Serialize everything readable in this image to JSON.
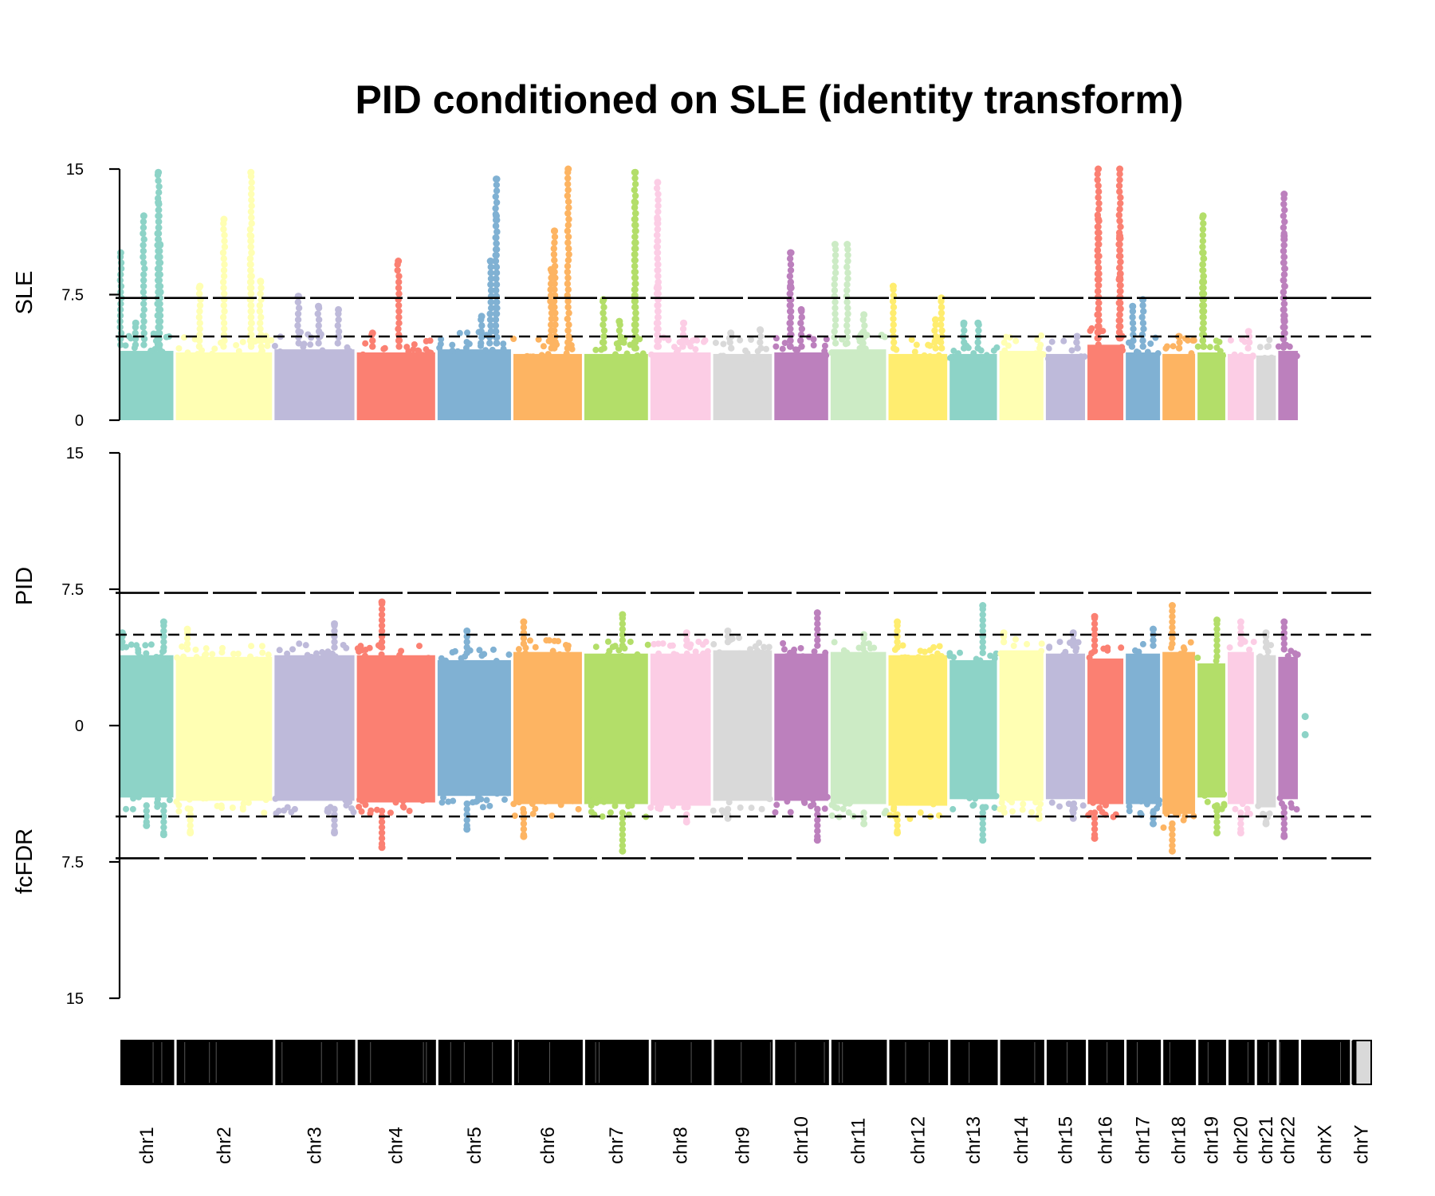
{
  "chart_data": {
    "type": "scatter",
    "title": "PID conditioned on SLE (identity transform)",
    "panels": [
      {
        "name": "top",
        "ylabel": "SLE",
        "yticks": [
          "15",
          "7.5",
          "0"
        ],
        "ylim": [
          0,
          15
        ],
        "threshold_solid": 7.3,
        "threshold_dashed": 5
      },
      {
        "name": "bottom",
        "ylabel_upper": "PID",
        "ylabel_lower": "fcFDR",
        "yticks": [
          "15",
          "7.5",
          "0",
          "7.5",
          "15"
        ],
        "ylim": [
          -15,
          15
        ],
        "threshold_solid": 7.3,
        "threshold_dashed": 5
      }
    ],
    "chromosomes": [
      {
        "name": "chr1",
        "color": "#8DD3C7",
        "top_base": 4.5,
        "top_peaks": [
          [
            0.02,
            10
          ],
          [
            0.45,
            12.2
          ],
          [
            0.72,
            14.8
          ],
          [
            0.72,
            13
          ],
          [
            0.75,
            10.5
          ],
          [
            0.3,
            5.8
          ]
        ],
        "bot_pos": 4.3,
        "bot_neg": 4.4,
        "bot_extremes": [
          [
            0.82,
            5.7
          ],
          [
            0.05,
            5.1
          ],
          [
            0.82,
            -6
          ],
          [
            0.5,
            -5.5
          ]
        ]
      },
      {
        "name": "chr2",
        "color": "#FFFFB3",
        "top_base": 4.4,
        "top_peaks": [
          [
            0.25,
            8
          ],
          [
            0.5,
            12
          ],
          [
            0.78,
            14.8
          ],
          [
            0.78,
            11
          ],
          [
            0.88,
            8.3
          ]
        ],
        "bot_pos": 4.2,
        "bot_neg": 4.6,
        "bot_extremes": [
          [
            0.12,
            5.3
          ],
          [
            0.15,
            -5.9
          ]
        ]
      },
      {
        "name": "chr3",
        "color": "#BEBADA",
        "top_base": 4.6,
        "top_peaks": [
          [
            0.3,
            7.4
          ],
          [
            0.55,
            6.8
          ],
          [
            0.8,
            6.6
          ]
        ],
        "bot_pos": 4.3,
        "bot_neg": 4.6,
        "bot_extremes": [
          [
            0.75,
            5.6
          ],
          [
            0.75,
            -5.9
          ]
        ]
      },
      {
        "name": "chr4",
        "color": "#FB8072",
        "top_base": 4.4,
        "top_peaks": [
          [
            0.53,
            9.5
          ],
          [
            0.2,
            5.2
          ]
        ],
        "bot_pos": 4.3,
        "bot_neg": 4.7,
        "bot_extremes": [
          [
            0.32,
            6.8
          ],
          [
            0.32,
            -6.7
          ]
        ]
      },
      {
        "name": "chr5",
        "color": "#80B1D3",
        "top_base": 4.6,
        "top_peaks": [
          [
            0.8,
            14.4
          ],
          [
            0.8,
            12.2
          ],
          [
            0.72,
            9.5
          ],
          [
            0.6,
            6.2
          ]
        ],
        "bot_pos": 4,
        "bot_neg": 4.3,
        "bot_extremes": [
          [
            0.4,
            5.2
          ],
          [
            0.4,
            -5.7
          ]
        ]
      },
      {
        "name": "chr6",
        "color": "#FDB462",
        "top_base": 4.3,
        "top_peaks": [
          [
            0.8,
            15
          ],
          [
            0.6,
            11.3
          ],
          [
            0.55,
            9
          ],
          [
            0.2,
            3.8
          ]
        ],
        "bot_pos": 4.5,
        "bot_neg": 4.8,
        "bot_extremes": [
          [
            0.15,
            5.7
          ],
          [
            0.15,
            -6.1
          ]
        ]
      },
      {
        "name": "chr7",
        "color": "#B3DE69",
        "top_base": 4.3,
        "top_peaks": [
          [
            0.8,
            14.8
          ],
          [
            0.8,
            13
          ],
          [
            0.3,
            7.2
          ],
          [
            0.55,
            5.9
          ]
        ],
        "bot_pos": 4.4,
        "bot_neg": 4.8,
        "bot_extremes": [
          [
            0.6,
            6.1
          ],
          [
            0.6,
            -6.9
          ]
        ]
      },
      {
        "name": "chr8",
        "color": "#FCCDE5",
        "top_base": 4.4,
        "top_peaks": [
          [
            0.12,
            14.2
          ],
          [
            0.12,
            12
          ],
          [
            0.12,
            8
          ],
          [
            0.55,
            5.8
          ]
        ],
        "bot_pos": 4.4,
        "bot_neg": 4.9,
        "bot_extremes": [
          [
            0.6,
            5.1
          ],
          [
            0.6,
            -5.3
          ]
        ]
      },
      {
        "name": "chr9",
        "color": "#D9D9D9",
        "top_base": 4.3,
        "top_peaks": [
          [
            0.3,
            5.2
          ],
          [
            0.8,
            5.4
          ]
        ],
        "bot_pos": 4.6,
        "bot_neg": 4.6,
        "bot_extremes": [
          [
            0.25,
            5.2
          ],
          [
            0.25,
            -5.1
          ]
        ]
      },
      {
        "name": "chr10",
        "color": "#BC80BD",
        "top_base": 4.4,
        "top_peaks": [
          [
            0.3,
            10
          ],
          [
            0.3,
            8
          ],
          [
            0.5,
            6.6
          ]
        ],
        "bot_pos": 4.4,
        "bot_neg": 4.6,
        "bot_extremes": [
          [
            0.8,
            6.2
          ],
          [
            0.8,
            -6.3
          ]
        ]
      },
      {
        "name": "chr11",
        "color": "#CCEBC5",
        "top_base": 4.6,
        "top_peaks": [
          [
            0.08,
            10.5
          ],
          [
            0.3,
            10.5
          ],
          [
            0.6,
            6.3
          ]
        ],
        "bot_pos": 4.5,
        "bot_neg": 4.8,
        "bot_extremes": [
          [
            0.6,
            5.0
          ],
          [
            0.6,
            -5.4
          ]
        ]
      },
      {
        "name": "chr12",
        "color": "#FFED6F",
        "top_base": 4.3,
        "top_peaks": [
          [
            0.08,
            8
          ],
          [
            0.9,
            7.3
          ],
          [
            0.8,
            6.0
          ]
        ],
        "bot_pos": 4.3,
        "bot_neg": 4.9,
        "bot_extremes": [
          [
            0.15,
            5.7
          ],
          [
            0.15,
            -5.9
          ]
        ]
      },
      {
        "name": "chr13",
        "color": "#8DD3C7",
        "top_base": 4.3,
        "top_peaks": [
          [
            0.6,
            5.8
          ],
          [
            0.3,
            5.8
          ]
        ],
        "bot_pos": 4.0,
        "bot_neg": 4.5,
        "bot_extremes": [
          [
            0.7,
            6.6
          ],
          [
            0.7,
            -6.3
          ]
        ]
      },
      {
        "name": "chr14",
        "color": "#FFFFB3",
        "top_base": 4.5,
        "top_peaks": [],
        "bot_pos": 4.6,
        "bot_neg": 4.6,
        "bot_extremes": [
          [
            0.1,
            5.1
          ],
          [
            0.9,
            -5.1
          ]
        ]
      },
      {
        "name": "chr15",
        "color": "#BEBADA",
        "top_base": 4.3,
        "top_peaks": [
          [
            0.8,
            5.0
          ]
        ],
        "bot_pos": 4.4,
        "bot_neg": 4.5,
        "bot_extremes": [
          [
            0.7,
            5.1
          ],
          [
            0.7,
            -5.1
          ]
        ]
      },
      {
        "name": "chr16",
        "color": "#FB8072",
        "top_base": 4.9,
        "top_peaks": [
          [
            0.3,
            15
          ],
          [
            0.3,
            12
          ],
          [
            0.9,
            15
          ],
          [
            0.9,
            11
          ],
          [
            0.9,
            8.5
          ]
        ],
        "bot_pos": 4.1,
        "bot_neg": 4.8,
        "bot_extremes": [
          [
            0.2,
            6.0
          ],
          [
            0.2,
            -6.2
          ]
        ]
      },
      {
        "name": "chr17",
        "color": "#80B1D3",
        "top_base": 4.4,
        "top_peaks": [
          [
            0.2,
            6.8
          ],
          [
            0.5,
            7.2
          ]
        ],
        "bot_pos": 4.4,
        "bot_neg": 4.8,
        "bot_extremes": [
          [
            0.8,
            5.3
          ],
          [
            0.8,
            -5.4
          ]
        ]
      },
      {
        "name": "chr18",
        "color": "#FDB462",
        "top_base": 4.3,
        "top_peaks": [
          [
            0.5,
            5.0
          ]
        ],
        "bot_pos": 4.5,
        "bot_neg": 5.4,
        "bot_extremes": [
          [
            0.3,
            6.6
          ],
          [
            0.3,
            -6.9
          ]
        ]
      },
      {
        "name": "chr19",
        "color": "#B3DE69",
        "top_base": 4.4,
        "top_peaks": [
          [
            0.2,
            12.2
          ],
          [
            0.2,
            10
          ],
          [
            0.2,
            8.3
          ]
        ],
        "bot_pos": 3.8,
        "bot_neg": 4.4,
        "bot_extremes": [
          [
            0.7,
            5.8
          ],
          [
            0.7,
            -5.9
          ]
        ]
      },
      {
        "name": "chr20",
        "color": "#FCCDE5",
        "top_base": 4.3,
        "top_peaks": [
          [
            0.8,
            5.3
          ]
        ],
        "bot_pos": 4.5,
        "bot_neg": 4.8,
        "bot_extremes": [
          [
            0.5,
            5.7
          ],
          [
            0.5,
            -5.9
          ]
        ]
      },
      {
        "name": "chr21",
        "color": "#D9D9D9",
        "top_base": 4.2,
        "top_peaks": [],
        "bot_pos": 4.3,
        "bot_neg": 5.0,
        "bot_extremes": [
          [
            0.5,
            5.1
          ],
          [
            0.5,
            -5.4
          ]
        ]
      },
      {
        "name": "chr22",
        "color": "#BC80BD",
        "top_base": 4.5,
        "top_peaks": [
          [
            0.3,
            13.5
          ],
          [
            0.3,
            11
          ],
          [
            0.3,
            6
          ]
        ],
        "bot_pos": 4.2,
        "bot_neg": 4.5,
        "bot_extremes": [
          [
            0.3,
            5.7
          ],
          [
            0.3,
            -6.1
          ]
        ]
      },
      {
        "name": "chrX",
        "color": "#8DD3C7",
        "top_base": 0,
        "top_peaks": [],
        "bot_pos": 0.5,
        "bot_neg": 0.5,
        "bot_extremes": [
          [
            0.1,
            0.5
          ],
          [
            0.1,
            -0.5
          ]
        ]
      },
      {
        "name": "chrY",
        "color": "#FFFFB3",
        "top_base": 0,
        "top_peaks": [],
        "bot_pos": 0,
        "bot_neg": 0,
        "bot_extremes": []
      }
    ]
  }
}
